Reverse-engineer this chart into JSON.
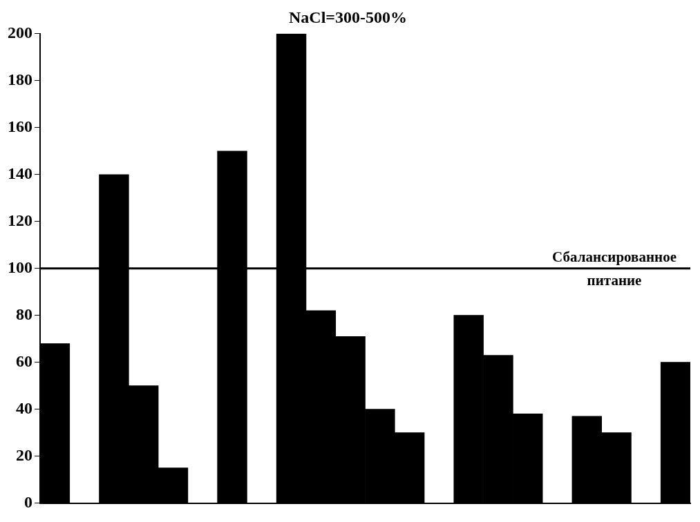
{
  "chart_data": {
    "type": "bar",
    "title": "NaCl=300-500%",
    "categories": [
      null,
      null,
      null,
      null,
      null,
      null,
      null,
      null,
      null,
      null,
      null,
      null,
      null,
      null,
      null,
      null,
      null,
      null,
      null,
      null,
      null,
      null
    ],
    "values": [
      68,
      null,
      140,
      50,
      15,
      null,
      150,
      null,
      200,
      82,
      71,
      40,
      30,
      null,
      80,
      63,
      38,
      null,
      37,
      30,
      null,
      60
    ],
    "color": "#000000",
    "ylim": [
      0,
      200
    ],
    "yticks": [
      0,
      20,
      40,
      60,
      80,
      100,
      120,
      140,
      160,
      180,
      200
    ],
    "tick_labels": "y",
    "grid": false,
    "legend": false,
    "ref_lines": [
      {
        "axis": "y",
        "value": 100,
        "label": "Сбалансированное питание",
        "color": "#000000",
        "line_style": "solid"
      }
    ]
  }
}
